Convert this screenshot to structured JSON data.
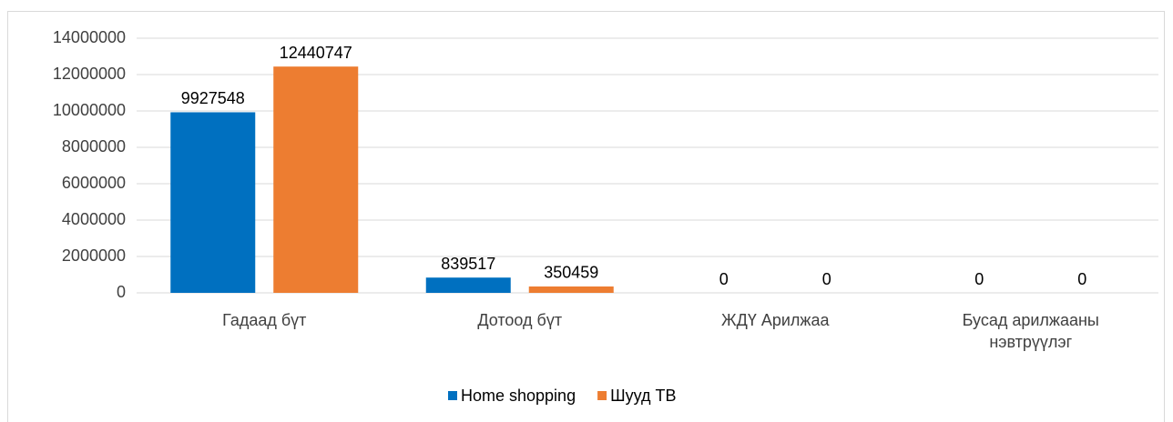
{
  "chart_data": {
    "type": "bar",
    "categories": [
      "Гадаад бүт",
      "Дотоод бүт",
      "ЖДҮ Арилжаа",
      "Бусад арилжааны нэвтрүүлэг"
    ],
    "series": [
      {
        "name": "Home shopping",
        "color": "#0070c0",
        "values": [
          9927548,
          839517,
          0,
          0
        ]
      },
      {
        "name": "Шууд ТВ",
        "color": "#ed7d31",
        "values": [
          12440747,
          350459,
          0,
          0
        ]
      }
    ],
    "ylim": [
      0,
      14000000
    ],
    "yticks": [
      0,
      2000000,
      4000000,
      6000000,
      8000000,
      10000000,
      12000000,
      14000000
    ],
    "grid": true,
    "legend": "bottom"
  }
}
